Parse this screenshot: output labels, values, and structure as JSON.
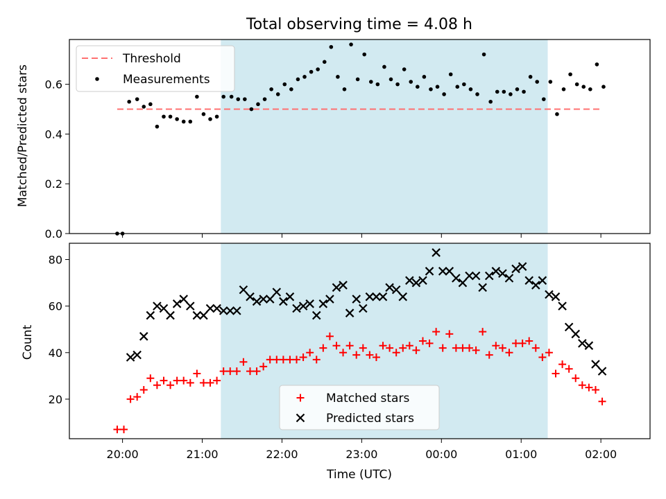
{
  "chart_data": [
    {
      "type": "scatter",
      "title": "Total observing time = 4.08 h",
      "ylabel": "Matched/Predicted stars",
      "ylim": [
        0,
        0.78
      ],
      "yticks": [
        "0.0",
        "0.2",
        "0.4",
        "0.6"
      ],
      "shaded_interval": [
        "21:14",
        "01:20"
      ],
      "shade_color": "#add8e6",
      "legend_position": "upper-left",
      "threshold": {
        "name": "Threshold",
        "value": 0.5,
        "x_range": [
          "19:56",
          "02:00"
        ],
        "color": "#ff7070"
      },
      "series": [
        {
          "name": "Measurements",
          "color": "#000000",
          "marker": "dot",
          "points": [
            [
              "19:56",
              0.0
            ],
            [
              "20:00",
              0.0
            ],
            [
              "20:05",
              0.53
            ],
            [
              "20:11",
              0.54
            ],
            [
              "20:16",
              0.51
            ],
            [
              "20:21",
              0.52
            ],
            [
              "20:26",
              0.43
            ],
            [
              "20:31",
              0.47
            ],
            [
              "20:36",
              0.47
            ],
            [
              "20:41",
              0.46
            ],
            [
              "20:46",
              0.45
            ],
            [
              "20:51",
              0.45
            ],
            [
              "20:56",
              0.55
            ],
            [
              "21:01",
              0.48
            ],
            [
              "21:06",
              0.46
            ],
            [
              "21:11",
              0.47
            ],
            [
              "21:16",
              0.55
            ],
            [
              "21:22",
              0.55
            ],
            [
              "21:27",
              0.54
            ],
            [
              "21:32",
              0.54
            ],
            [
              "21:37",
              0.5
            ],
            [
              "21:42",
              0.52
            ],
            [
              "21:47",
              0.54
            ],
            [
              "21:52",
              0.58
            ],
            [
              "21:57",
              0.56
            ],
            [
              "22:02",
              0.6
            ],
            [
              "22:07",
              0.58
            ],
            [
              "22:12",
              0.62
            ],
            [
              "22:17",
              0.63
            ],
            [
              "22:22",
              0.65
            ],
            [
              "22:27",
              0.66
            ],
            [
              "22:32",
              0.69
            ],
            [
              "22:37",
              0.75
            ],
            [
              "22:42",
              0.63
            ],
            [
              "22:47",
              0.58
            ],
            [
              "22:52",
              0.76
            ],
            [
              "22:57",
              0.62
            ],
            [
              "23:02",
              0.72
            ],
            [
              "23:07",
              0.61
            ],
            [
              "23:12",
              0.6
            ],
            [
              "23:17",
              0.67
            ],
            [
              "23:22",
              0.62
            ],
            [
              "23:27",
              0.6
            ],
            [
              "23:32",
              0.66
            ],
            [
              "23:37",
              0.61
            ],
            [
              "23:42",
              0.59
            ],
            [
              "23:47",
              0.63
            ],
            [
              "23:52",
              0.58
            ],
            [
              "23:57",
              0.59
            ],
            [
              "00:02",
              0.56
            ],
            [
              "00:07",
              0.64
            ],
            [
              "00:12",
              0.59
            ],
            [
              "00:17",
              0.6
            ],
            [
              "00:22",
              0.58
            ],
            [
              "00:27",
              0.56
            ],
            [
              "00:32",
              0.72
            ],
            [
              "00:37",
              0.53
            ],
            [
              "00:42",
              0.57
            ],
            [
              "00:47",
              0.57
            ],
            [
              "00:52",
              0.56
            ],
            [
              "00:57",
              0.58
            ],
            [
              "01:02",
              0.57
            ],
            [
              "01:07",
              0.63
            ],
            [
              "01:12",
              0.61
            ],
            [
              "01:17",
              0.54
            ],
            [
              "01:22",
              0.61
            ],
            [
              "01:27",
              0.48
            ],
            [
              "01:32",
              0.58
            ],
            [
              "01:37",
              0.64
            ],
            [
              "01:42",
              0.6
            ],
            [
              "01:47",
              0.59
            ],
            [
              "01:52",
              0.58
            ],
            [
              "01:57",
              0.68
            ],
            [
              "02:02",
              0.59
            ]
          ]
        }
      ]
    },
    {
      "type": "scatter",
      "xlabel": "Time (UTC)",
      "ylabel": "Count",
      "ylim": [
        3,
        87
      ],
      "yticks": [
        "20",
        "40",
        "60",
        "80"
      ],
      "xticks": [
        "20:00",
        "21:00",
        "22:00",
        "23:00",
        "00:00",
        "01:00",
        "02:00"
      ],
      "shaded_interval": [
        "21:14",
        "01:20"
      ],
      "legend_position": "lower-center",
      "series": [
        {
          "name": "Matched stars",
          "color": "#ff0000",
          "marker": "plus",
          "points": [
            [
              "19:56",
              7
            ],
            [
              "20:01",
              7
            ],
            [
              "20:06",
              20
            ],
            [
              "20:11",
              21
            ],
            [
              "20:16",
              24
            ],
            [
              "20:21",
              29
            ],
            [
              "20:26",
              26
            ],
            [
              "20:31",
              28
            ],
            [
              "20:36",
              26
            ],
            [
              "20:41",
              28
            ],
            [
              "20:46",
              28
            ],
            [
              "20:51",
              27
            ],
            [
              "20:56",
              31
            ],
            [
              "21:01",
              27
            ],
            [
              "21:06",
              27
            ],
            [
              "21:11",
              28
            ],
            [
              "21:16",
              32
            ],
            [
              "21:21",
              32
            ],
            [
              "21:26",
              32
            ],
            [
              "21:31",
              36
            ],
            [
              "21:36",
              32
            ],
            [
              "21:41",
              32
            ],
            [
              "21:46",
              34
            ],
            [
              "21:51",
              37
            ],
            [
              "21:56",
              37
            ],
            [
              "22:01",
              37
            ],
            [
              "22:06",
              37
            ],
            [
              "22:11",
              37
            ],
            [
              "22:16",
              38
            ],
            [
              "22:21",
              40
            ],
            [
              "22:26",
              37
            ],
            [
              "22:31",
              42
            ],
            [
              "22:36",
              47
            ],
            [
              "22:41",
              43
            ],
            [
              "22:46",
              40
            ],
            [
              "22:51",
              43
            ],
            [
              "22:56",
              39
            ],
            [
              "23:01",
              42
            ],
            [
              "23:06",
              39
            ],
            [
              "23:11",
              38
            ],
            [
              "23:16",
              43
            ],
            [
              "23:21",
              42
            ],
            [
              "23:26",
              40
            ],
            [
              "23:31",
              42
            ],
            [
              "23:36",
              43
            ],
            [
              "23:41",
              41
            ],
            [
              "23:46",
              45
            ],
            [
              "23:51",
              44
            ],
            [
              "23:56",
              49
            ],
            [
              "00:01",
              42
            ],
            [
              "00:06",
              48
            ],
            [
              "00:11",
              42
            ],
            [
              "00:16",
              42
            ],
            [
              "00:21",
              42
            ],
            [
              "00:26",
              41
            ],
            [
              "00:31",
              49
            ],
            [
              "00:36",
              39
            ],
            [
              "00:41",
              43
            ],
            [
              "00:46",
              42
            ],
            [
              "00:51",
              40
            ],
            [
              "00:56",
              44
            ],
            [
              "01:01",
              44
            ],
            [
              "01:06",
              45
            ],
            [
              "01:11",
              42
            ],
            [
              "01:16",
              38
            ],
            [
              "01:21",
              40
            ],
            [
              "01:26",
              31
            ],
            [
              "01:31",
              35
            ],
            [
              "01:36",
              33
            ],
            [
              "01:41",
              29
            ],
            [
              "01:46",
              26
            ],
            [
              "01:51",
              25
            ],
            [
              "01:56",
              24
            ],
            [
              "02:01",
              19
            ]
          ]
        },
        {
          "name": "Predicted stars",
          "color": "#000000",
          "marker": "x",
          "points": [
            [
              "20:06",
              38
            ],
            [
              "20:11",
              39
            ],
            [
              "20:16",
              47
            ],
            [
              "20:21",
              56
            ],
            [
              "20:26",
              60
            ],
            [
              "20:31",
              59
            ],
            [
              "20:36",
              56
            ],
            [
              "20:41",
              61
            ],
            [
              "20:46",
              63
            ],
            [
              "20:51",
              60
            ],
            [
              "20:56",
              56
            ],
            [
              "21:01",
              56
            ],
            [
              "21:06",
              59
            ],
            [
              "21:11",
              59
            ],
            [
              "21:16",
              58
            ],
            [
              "21:21",
              58
            ],
            [
              "21:26",
              58
            ],
            [
              "21:31",
              67
            ],
            [
              "21:36",
              64
            ],
            [
              "21:41",
              62
            ],
            [
              "21:46",
              63
            ],
            [
              "21:51",
              63
            ],
            [
              "21:56",
              66
            ],
            [
              "22:01",
              62
            ],
            [
              "22:06",
              64
            ],
            [
              "22:11",
              59
            ],
            [
              "22:16",
              60
            ],
            [
              "22:21",
              61
            ],
            [
              "22:26",
              56
            ],
            [
              "22:31",
              61
            ],
            [
              "22:36",
              63
            ],
            [
              "22:41",
              68
            ],
            [
              "22:46",
              69
            ],
            [
              "22:51",
              57
            ],
            [
              "22:56",
              63
            ],
            [
              "23:01",
              59
            ],
            [
              "23:06",
              64
            ],
            [
              "23:11",
              64
            ],
            [
              "23:16",
              64
            ],
            [
              "23:21",
              68
            ],
            [
              "23:26",
              67
            ],
            [
              "23:31",
              64
            ],
            [
              "23:36",
              71
            ],
            [
              "23:41",
              70
            ],
            [
              "23:46",
              71
            ],
            [
              "23:51",
              75
            ],
            [
              "23:56",
              83
            ],
            [
              "00:01",
              75
            ],
            [
              "00:06",
              75
            ],
            [
              "00:11",
              72
            ],
            [
              "00:16",
              70
            ],
            [
              "00:21",
              73
            ],
            [
              "00:26",
              73
            ],
            [
              "00:31",
              68
            ],
            [
              "00:36",
              73
            ],
            [
              "00:41",
              75
            ],
            [
              "00:46",
              74
            ],
            [
              "00:51",
              72
            ],
            [
              "00:56",
              76
            ],
            [
              "01:01",
              77
            ],
            [
              "01:06",
              71
            ],
            [
              "01:11",
              69
            ],
            [
              "01:16",
              71
            ],
            [
              "01:21",
              65
            ],
            [
              "01:26",
              64
            ],
            [
              "01:31",
              60
            ],
            [
              "01:36",
              51
            ],
            [
              "01:41",
              48
            ],
            [
              "01:46",
              44
            ],
            [
              "01:51",
              43
            ],
            [
              "01:56",
              35
            ],
            [
              "02:01",
              32
            ]
          ]
        }
      ]
    }
  ]
}
